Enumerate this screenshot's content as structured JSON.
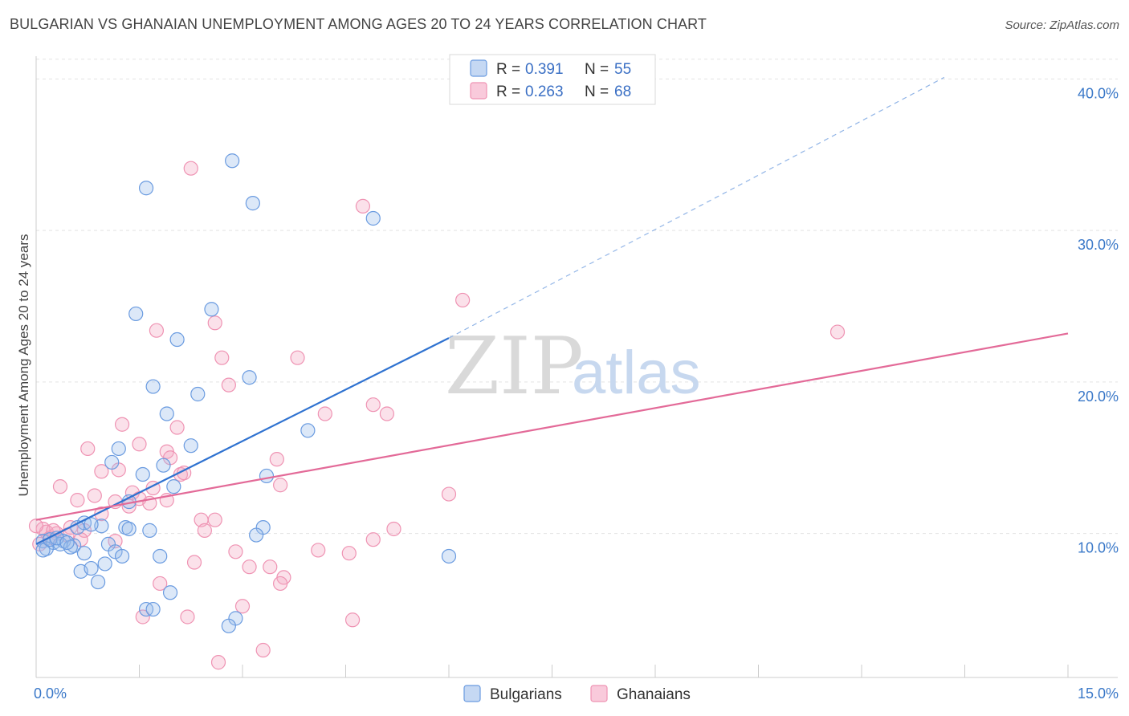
{
  "title": "BULGARIAN VS GHANAIAN UNEMPLOYMENT AMONG AGES 20 TO 24 YEARS CORRELATION CHART",
  "source": "Source: ZipAtlas.com",
  "watermark": {
    "zip": "ZIP",
    "atlas": "atlas"
  },
  "legend": [
    {
      "r_label": "R =",
      "r_value": "0.391",
      "n_label": "N =",
      "n_value": "55"
    },
    {
      "r_label": "R =",
      "r_value": "0.263",
      "n_label": "N =",
      "n_value": "68"
    }
  ],
  "chart_data": {
    "type": "scatter",
    "title": "BULGARIAN VS GHANAIAN UNEMPLOYMENT AMONG AGES 20 TO 24 YEARS CORRELATION CHART",
    "xlabel": "",
    "ylabel": "Unemployment Among Ages 20 to 24 years",
    "xlim": [
      0,
      15
    ],
    "ylim": [
      0.5,
      41.5
    ],
    "x_tick_labels": [
      {
        "value": 0,
        "label": "0.0%"
      },
      {
        "value": 15,
        "label": "15.0%"
      }
    ],
    "y_tick_labels": [
      {
        "value": 10,
        "label": "10.0%"
      },
      {
        "value": 20,
        "label": "20.0%"
      },
      {
        "value": 30,
        "label": "30.0%"
      },
      {
        "value": 40,
        "label": "40.0%"
      }
    ],
    "grid": true,
    "legend_position": "top-center",
    "colors": {
      "Bulgarians": "#6a9be0",
      "Ghanaians": "#ef93b3",
      "blue_line": "#2f72d0",
      "pink_line": "#e36a98"
    },
    "series": [
      {
        "name": "Bulgarians",
        "R": 0.391,
        "N": 55,
        "trend": {
          "x0": 0,
          "y0": 9.3,
          "x1": 6.0,
          "y1": 22.9,
          "dashed_to_x": 13.2,
          "dashed_to_y": 40.1
        },
        "points": [
          [
            2.85,
            34.6
          ],
          [
            1.6,
            32.8
          ],
          [
            3.15,
            31.8
          ],
          [
            4.9,
            30.8
          ],
          [
            1.45,
            24.5
          ],
          [
            2.55,
            24.8
          ],
          [
            2.05,
            22.8
          ],
          [
            1.7,
            19.7
          ],
          [
            2.35,
            19.2
          ],
          [
            3.1,
            20.3
          ],
          [
            1.9,
            17.9
          ],
          [
            3.95,
            16.8
          ],
          [
            1.2,
            15.6
          ],
          [
            2.25,
            15.8
          ],
          [
            1.1,
            14.7
          ],
          [
            1.85,
            14.5
          ],
          [
            1.55,
            13.9
          ],
          [
            3.35,
            13.8
          ],
          [
            2.0,
            13.1
          ],
          [
            1.35,
            12.1
          ],
          [
            0.7,
            10.7
          ],
          [
            0.95,
            10.5
          ],
          [
            0.8,
            10.6
          ],
          [
            0.6,
            10.4
          ],
          [
            1.3,
            10.4
          ],
          [
            1.35,
            10.3
          ],
          [
            1.65,
            10.2
          ],
          [
            3.3,
            10.4
          ],
          [
            3.2,
            9.9
          ],
          [
            0.1,
            9.5
          ],
          [
            0.25,
            9.4
          ],
          [
            0.4,
            9.5
          ],
          [
            0.35,
            9.3
          ],
          [
            0.55,
            9.2
          ],
          [
            0.15,
            9.0
          ],
          [
            0.1,
            8.9
          ],
          [
            0.5,
            9.1
          ],
          [
            1.05,
            9.3
          ],
          [
            1.15,
            8.8
          ],
          [
            0.7,
            8.7
          ],
          [
            1.25,
            8.5
          ],
          [
            1.8,
            8.5
          ],
          [
            6.0,
            8.5
          ],
          [
            1.0,
            8.0
          ],
          [
            0.65,
            7.5
          ],
          [
            0.8,
            7.7
          ],
          [
            0.9,
            6.8
          ],
          [
            1.95,
            6.1
          ],
          [
            1.6,
            5.0
          ],
          [
            1.7,
            5.0
          ],
          [
            2.9,
            4.4
          ],
          [
            2.8,
            3.9
          ],
          [
            0.2,
            9.6
          ],
          [
            0.3,
            9.7
          ],
          [
            0.45,
            9.4
          ]
        ]
      },
      {
        "name": "Ghanaians",
        "R": 0.263,
        "N": 68,
        "trend": {
          "x0": 0,
          "y0": 10.9,
          "x1": 15.0,
          "y1": 23.2
        },
        "points": [
          [
            2.25,
            34.1
          ],
          [
            4.75,
            31.6
          ],
          [
            6.2,
            25.4
          ],
          [
            11.65,
            23.3
          ],
          [
            1.75,
            23.4
          ],
          [
            2.6,
            23.9
          ],
          [
            2.7,
            21.6
          ],
          [
            3.8,
            21.6
          ],
          [
            2.8,
            19.8
          ],
          [
            4.9,
            18.5
          ],
          [
            4.2,
            17.9
          ],
          [
            5.1,
            17.9
          ],
          [
            1.25,
            17.2
          ],
          [
            2.05,
            17.0
          ],
          [
            0.75,
            15.6
          ],
          [
            1.5,
            15.9
          ],
          [
            1.9,
            15.4
          ],
          [
            1.95,
            15.0
          ],
          [
            3.5,
            14.9
          ],
          [
            0.95,
            14.1
          ],
          [
            1.2,
            14.2
          ],
          [
            2.1,
            13.9
          ],
          [
            2.15,
            14.0
          ],
          [
            0.35,
            13.1
          ],
          [
            1.7,
            13.0
          ],
          [
            3.55,
            13.2
          ],
          [
            1.4,
            12.7
          ],
          [
            6.0,
            12.6
          ],
          [
            0.85,
            12.5
          ],
          [
            0.6,
            12.2
          ],
          [
            1.5,
            12.3
          ],
          [
            1.9,
            12.2
          ],
          [
            1.15,
            12.1
          ],
          [
            1.35,
            11.8
          ],
          [
            1.65,
            12.0
          ],
          [
            0.95,
            11.3
          ],
          [
            2.4,
            10.9
          ],
          [
            2.6,
            10.9
          ],
          [
            2.45,
            10.2
          ],
          [
            0.5,
            10.4
          ],
          [
            0.7,
            10.2
          ],
          [
            0.15,
            10.1
          ],
          [
            0.3,
            10.0
          ],
          [
            0.45,
            9.9
          ],
          [
            0.1,
            10.3
          ],
          [
            0.2,
            9.7
          ],
          [
            0.65,
            9.6
          ],
          [
            1.15,
            9.5
          ],
          [
            5.2,
            10.3
          ],
          [
            4.9,
            9.6
          ],
          [
            0.05,
            9.3
          ],
          [
            4.1,
            8.9
          ],
          [
            4.55,
            8.7
          ],
          [
            2.9,
            8.8
          ],
          [
            2.3,
            8.1
          ],
          [
            3.1,
            7.8
          ],
          [
            3.4,
            7.8
          ],
          [
            3.6,
            7.1
          ],
          [
            3.55,
            6.7
          ],
          [
            1.8,
            6.7
          ],
          [
            3.0,
            5.2
          ],
          [
            1.55,
            4.5
          ],
          [
            2.2,
            4.5
          ],
          [
            4.6,
            4.3
          ],
          [
            3.3,
            2.3
          ],
          [
            2.65,
            1.5
          ],
          [
            0.0,
            10.5
          ],
          [
            0.25,
            10.2
          ]
        ]
      }
    ]
  }
}
